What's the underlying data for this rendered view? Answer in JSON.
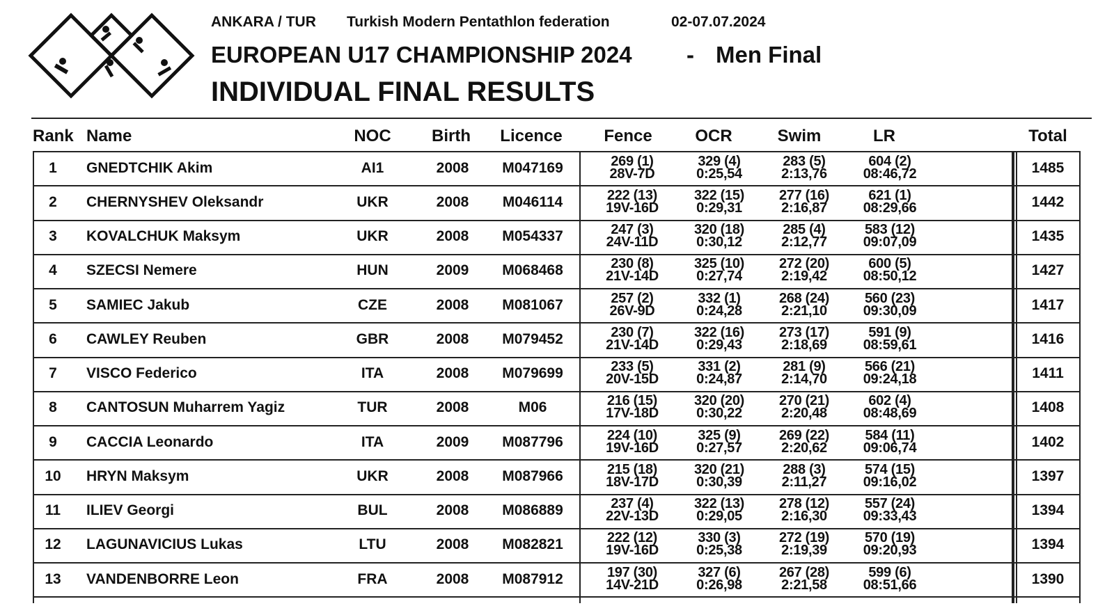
{
  "header": {
    "location": "ANKARA / TUR",
    "federation": "Turkish Modern Pentathlon federation",
    "dates": "02-07.07.2024",
    "title": "EUROPEAN U17 CHAMPIONSHIP 2024",
    "separator": "-",
    "event": "Men Final",
    "heading": "INDIVIDUAL FINAL RESULTS"
  },
  "table": {
    "columns": [
      "Rank",
      "Name",
      "NOC",
      "Birth",
      "Licence",
      "Fence",
      "OCR",
      "Swim",
      "LR",
      "Total"
    ],
    "rows": [
      [
        "1",
        "GNEDTCHIK Akim",
        "AI1",
        "2008",
        "M047169",
        [
          "269 (1)",
          "28V-7D"
        ],
        [
          "329 (4)",
          "0:25,54"
        ],
        [
          "283 (5)",
          "2:13,76"
        ],
        [
          "604 (2)",
          "08:46,72"
        ],
        "1485"
      ],
      [
        "2",
        "CHERNYSHEV Oleksandr",
        "UKR",
        "2008",
        "M046114",
        [
          "222 (13)",
          "19V-16D"
        ],
        [
          "322 (15)",
          "0:29,31"
        ],
        [
          "277 (16)",
          "2:16,87"
        ],
        [
          "621 (1)",
          "08:29,66"
        ],
        "1442"
      ],
      [
        "3",
        "KOVALCHUK Maksym",
        "UKR",
        "2008",
        "M054337",
        [
          "247 (3)",
          "24V-11D"
        ],
        [
          "320 (18)",
          "0:30,12"
        ],
        [
          "285 (4)",
          "2:12,77"
        ],
        [
          "583 (12)",
          "09:07,09"
        ],
        "1435"
      ],
      [
        "4",
        "SZECSI Nemere",
        "HUN",
        "2009",
        "M068468",
        [
          "230 (8)",
          "21V-14D"
        ],
        [
          "325 (10)",
          "0:27,74"
        ],
        [
          "272 (20)",
          "2:19,42"
        ],
        [
          "600 (5)",
          "08:50,12"
        ],
        "1427"
      ],
      [
        "5",
        "SAMIEC Jakub",
        "CZE",
        "2008",
        "M081067",
        [
          "257 (2)",
          "26V-9D"
        ],
        [
          "332 (1)",
          "0:24,28"
        ],
        [
          "268 (24)",
          "2:21,10"
        ],
        [
          "560 (23)",
          "09:30,09"
        ],
        "1417"
      ],
      [
        "6",
        "CAWLEY Reuben",
        "GBR",
        "2008",
        "M079452",
        [
          "230 (7)",
          "21V-14D"
        ],
        [
          "322 (16)",
          "0:29,43"
        ],
        [
          "273 (17)",
          "2:18,69"
        ],
        [
          "591 (9)",
          "08:59,61"
        ],
        "1416"
      ],
      [
        "7",
        "VISCO Federico",
        "ITA",
        "2008",
        "M079699",
        [
          "233 (5)",
          "20V-15D"
        ],
        [
          "331 (2)",
          "0:24,87"
        ],
        [
          "281 (9)",
          "2:14,70"
        ],
        [
          "566 (21)",
          "09:24,18"
        ],
        "1411"
      ],
      [
        "8",
        "CANTOSUN Muharrem Yagiz",
        "TUR",
        "2008",
        "M06",
        [
          "216 (15)",
          "17V-18D"
        ],
        [
          "320 (20)",
          "0:30,22"
        ],
        [
          "270 (21)",
          "2:20,48"
        ],
        [
          "602 (4)",
          "08:48,69"
        ],
        "1408"
      ],
      [
        "9",
        "CACCIA Leonardo",
        "ITA",
        "2009",
        "M087796",
        [
          "224 (10)",
          "19V-16D"
        ],
        [
          "325 (9)",
          "0:27,57"
        ],
        [
          "269 (22)",
          "2:20,62"
        ],
        [
          "584 (11)",
          "09:06,74"
        ],
        "1402"
      ],
      [
        "10",
        "HRYN Maksym",
        "UKR",
        "2008",
        "M087966",
        [
          "215 (18)",
          "18V-17D"
        ],
        [
          "320 (21)",
          "0:30,39"
        ],
        [
          "288 (3)",
          "2:11,27"
        ],
        [
          "574 (15)",
          "09:16,02"
        ],
        "1397"
      ],
      [
        "11",
        "ILIEV Georgi",
        "BUL",
        "2008",
        "M086889",
        [
          "237 (4)",
          "22V-13D"
        ],
        [
          "322 (13)",
          "0:29,05"
        ],
        [
          "278 (12)",
          "2:16,30"
        ],
        [
          "557 (24)",
          "09:33,43"
        ],
        "1394"
      ],
      [
        "12",
        "LAGUNAVICIUS Lukas",
        "LTU",
        "2008",
        "M082821",
        [
          "222 (12)",
          "19V-16D"
        ],
        [
          "330 (3)",
          "0:25,38"
        ],
        [
          "272 (19)",
          "2:19,39"
        ],
        [
          "570 (19)",
          "09:20,93"
        ],
        "1394"
      ],
      [
        "13",
        "VANDENBORRE Leon",
        "FRA",
        "2008",
        "M087912",
        [
          "197 (30)",
          "14V-21D"
        ],
        [
          "327 (6)",
          "0:26,98"
        ],
        [
          "267 (28)",
          "2:21,58"
        ],
        [
          "599 (6)",
          "08:51,66"
        ],
        "1390"
      ]
    ]
  }
}
